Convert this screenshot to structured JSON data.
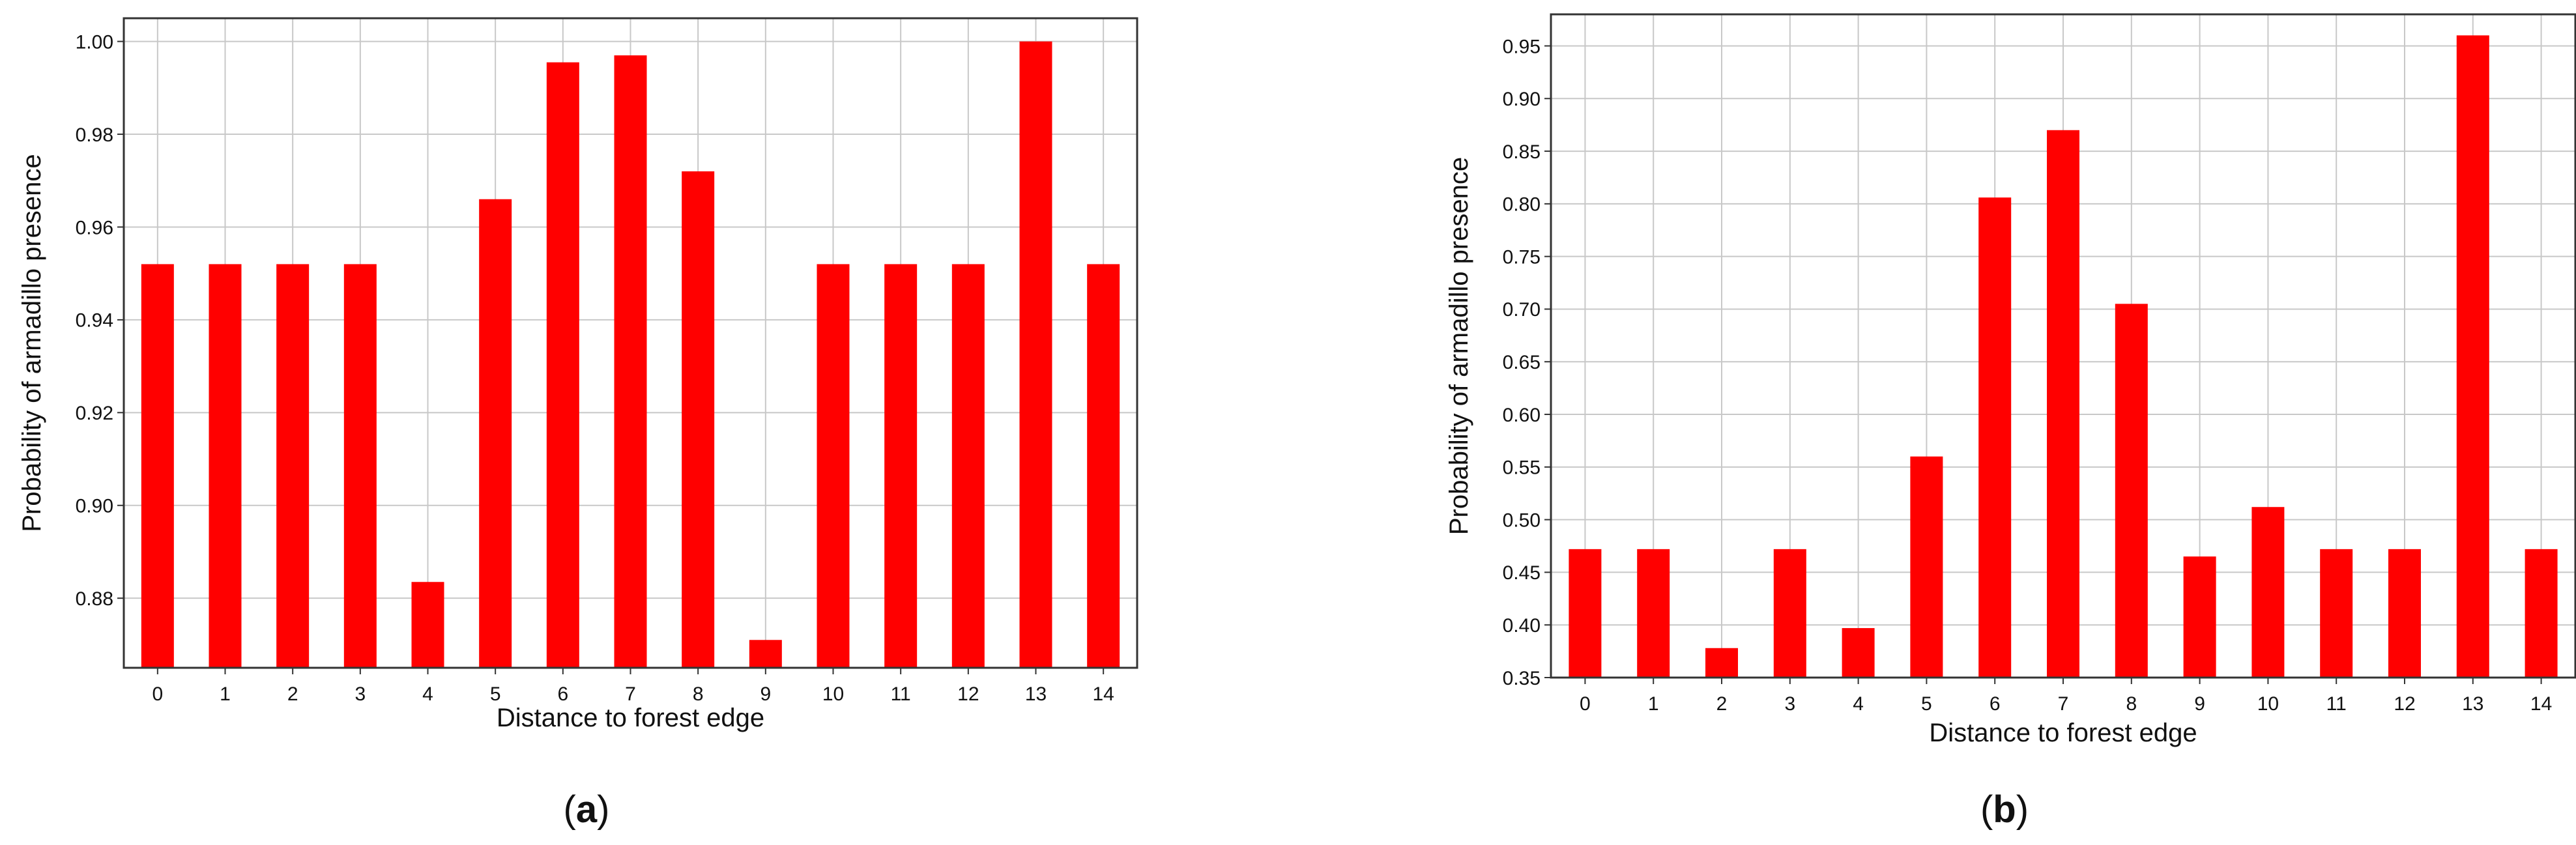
{
  "chart_data": [
    {
      "type": "bar",
      "panel": "(a)",
      "xlabel": "Distance to forest edge",
      "ylabel": "Probability of armadillo presence",
      "categories": [
        "0",
        "1",
        "2",
        "3",
        "4",
        "5",
        "6",
        "7",
        "8",
        "9",
        "10",
        "11",
        "12",
        "13",
        "14"
      ],
      "values": [
        0.952,
        0.952,
        0.952,
        0.952,
        0.8835,
        0.966,
        0.9955,
        0.997,
        0.972,
        0.871,
        0.952,
        0.952,
        0.952,
        1.0,
        0.952
      ],
      "ylim": [
        0.865,
        1.005
      ],
      "yticks": [
        "0.88",
        "0.90",
        "0.92",
        "0.94",
        "0.96",
        "0.98",
        "1.00"
      ],
      "grid": true,
      "bar_color": "#ff0000"
    },
    {
      "type": "bar",
      "panel": "(b)",
      "xlabel": "Distance to forest edge",
      "ylabel": "Probability of armadillo presence",
      "categories": [
        "0",
        "1",
        "2",
        "3",
        "4",
        "5",
        "6",
        "7",
        "8",
        "9",
        "10",
        "11",
        "12",
        "13",
        "14"
      ],
      "values": [
        0.472,
        0.472,
        0.378,
        0.472,
        0.397,
        0.56,
        0.806,
        0.87,
        0.705,
        0.465,
        0.512,
        0.472,
        0.472,
        0.96,
        0.472
      ],
      "ylim": [
        0.35,
        0.98
      ],
      "yticks": [
        "0.35",
        "0.40",
        "0.45",
        "0.50",
        "0.55",
        "0.60",
        "0.65",
        "0.70",
        "0.75",
        "0.80",
        "0.85",
        "0.90",
        "0.95"
      ],
      "grid": true,
      "bar_color": "#ff0000"
    }
  ]
}
